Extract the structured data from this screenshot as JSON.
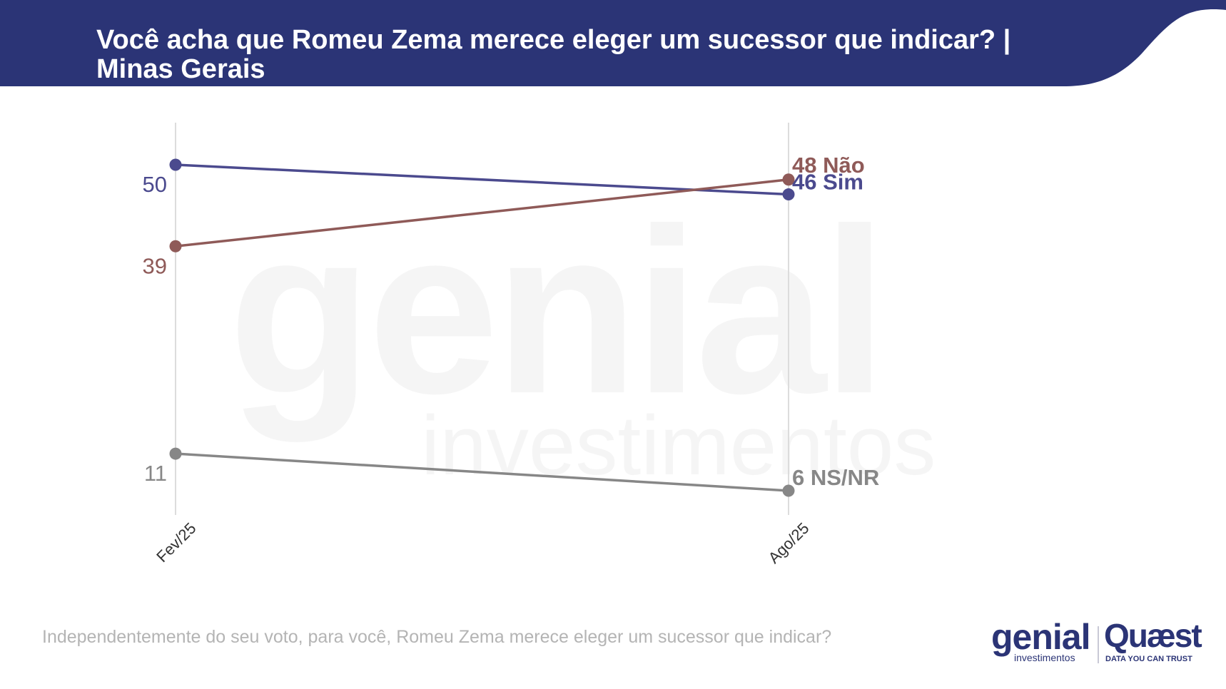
{
  "header": {
    "title_line1": "Você acha que Romeu Zema merece eleger um sucessor que indicar? |",
    "title_line2": "Minas Gerais",
    "color": "#2b3476"
  },
  "watermark": {
    "word": "genial",
    "sub": "investimentos"
  },
  "chart_data": {
    "type": "line",
    "categories": [
      "Fev/25",
      "Ago/25"
    ],
    "series": [
      {
        "name": "Sim",
        "values": [
          50,
          46
        ],
        "color": "#4b4a8e",
        "end_label": "46 Sim",
        "start_label": "50"
      },
      {
        "name": "Não",
        "values": [
          39,
          48
        ],
        "color": "#8f5a58",
        "end_label": "48 Não",
        "start_label": "39"
      },
      {
        "name": "NS/NR",
        "values": [
          11,
          6
        ],
        "color": "#878787",
        "end_label": "6 NS/NR",
        "start_label": "11"
      }
    ],
    "ylim": [
      6,
      50
    ],
    "grid": "vertical",
    "legend": "none"
  },
  "footer": {
    "question": "Independentemente do seu voto, para você, Romeu Zema merece eleger um sucessor que indicar?"
  },
  "logos": {
    "genial_word": "genial",
    "genial_sub": "investimentos",
    "quaest_word": "Quæst",
    "quaest_tagline": "DATA YOU CAN TRUST"
  }
}
